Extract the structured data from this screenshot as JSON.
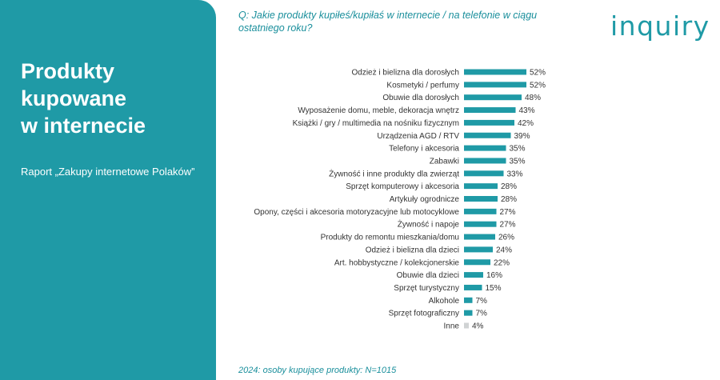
{
  "panel": {
    "title_lines": [
      "Produkty",
      "kupowane",
      "w internecie"
    ],
    "subtitle": "Raport „Zakupy internetowe Polaków”"
  },
  "question": "Q: Jakie produkty kupiłeś/kupiłaś w internecie / na telefonie w ciągu ostatniego roku?",
  "logo": "inquiry",
  "footnote": "2024: osoby kupujące produkty: N=1015",
  "colors": {
    "accent": "#1f9aa6",
    "bar": "#1f9aa6",
    "bar_minor": "#d0d3d4"
  },
  "chart_data": {
    "type": "bar",
    "orientation": "horizontal",
    "value_suffix": "%",
    "categories": [
      "Odzież i bielizna dla dorosłych",
      "Kosmetyki / perfumy",
      "Obuwie dla dorosłych",
      "Wyposażenie domu, meble, dekoracja wnętrz",
      "Książki / gry / multimedia na nośniku fizycznym",
      "Urządzenia AGD / RTV",
      "Telefony i akcesoria",
      "Zabawki",
      "Żywność i inne produkty dla zwierząt",
      "Sprzęt komputerowy i akcesoria",
      "Artykuły ogrodnicze",
      "Opony, części i akcesoria motoryzacyjne lub motocyklowe",
      "Żywność i napoje",
      "Produkty do remontu mieszkania/domu",
      "Odzież i bielizna dla dzieci",
      "Art. hobbystyczne / kolekcjonerskie",
      "Obuwie dla dzieci",
      "Sprzęt turystyczny",
      "Alkohole",
      "Sprzęt fotograficzny",
      "Inne"
    ],
    "values": [
      52,
      52,
      48,
      43,
      42,
      39,
      35,
      35,
      33,
      28,
      28,
      27,
      27,
      26,
      24,
      22,
      16,
      15,
      7,
      7,
      4
    ],
    "xlim": [
      0,
      60
    ],
    "grid": false,
    "legend": "none"
  }
}
